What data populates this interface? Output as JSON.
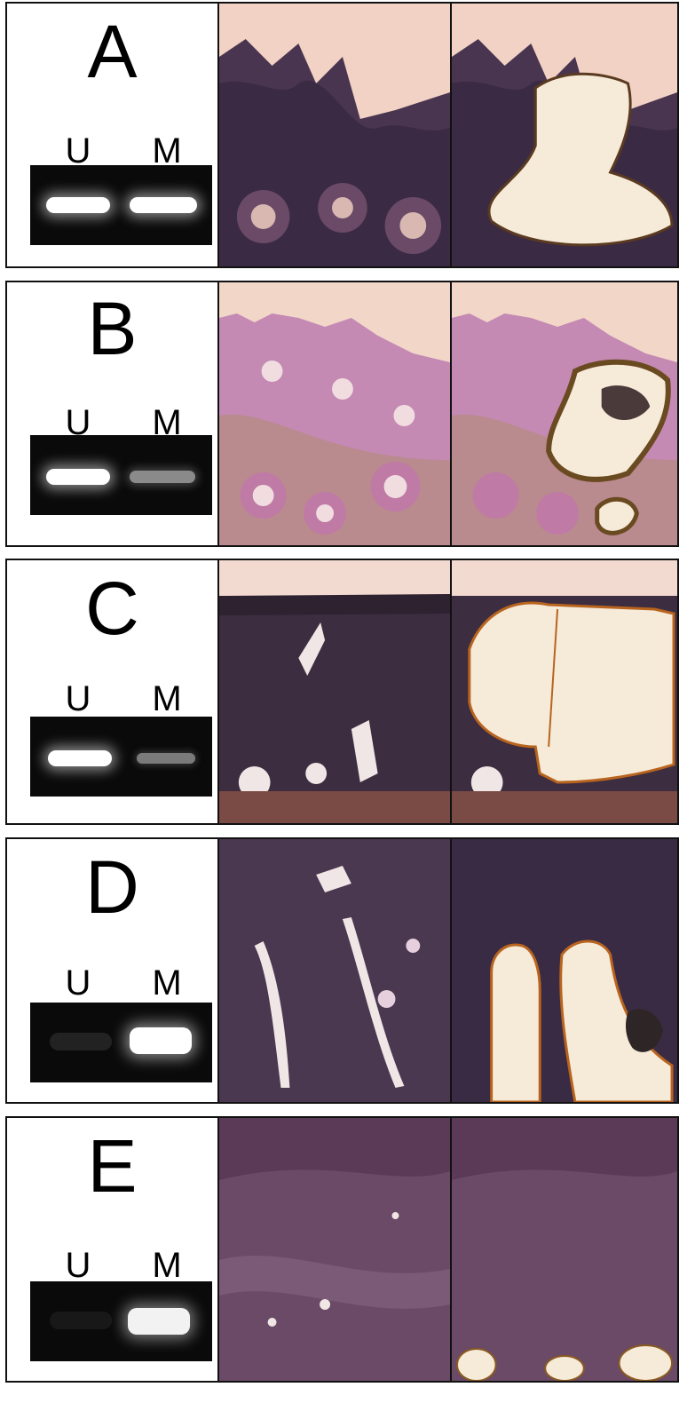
{
  "panels": [
    {
      "letter": "A",
      "lane_u": "U",
      "lane_m": "M",
      "u_intensity": 1.0,
      "m_intensity": 1.0,
      "histology": "colonic-mucosa",
      "mask": "large-region"
    },
    {
      "letter": "B",
      "lane_u": "U",
      "lane_m": "M",
      "u_intensity": 1.0,
      "m_intensity": 0.45,
      "histology": "normal-crypts",
      "mask": "crypt-group"
    },
    {
      "letter": "C",
      "lane_u": "U",
      "lane_m": "M",
      "u_intensity": 1.0,
      "m_intensity": 0.35,
      "histology": "adenoma",
      "mask": "large-block"
    },
    {
      "letter": "D",
      "lane_u": "U",
      "lane_m": "M",
      "u_intensity": 0.08,
      "m_intensity": 1.0,
      "histology": "carcinoma",
      "mask": "two-lobes"
    },
    {
      "letter": "E",
      "lane_u": "U",
      "lane_m": "M",
      "u_intensity": 0.05,
      "m_intensity": 0.95,
      "histology": "dense-tumor",
      "mask": "small-spots"
    }
  ],
  "colors": {
    "tissue": "#8a5a86",
    "background": "#f3d6c8",
    "dark": "#3b2a45",
    "captured": "#f6ead8",
    "rim": "#8a5a20"
  }
}
